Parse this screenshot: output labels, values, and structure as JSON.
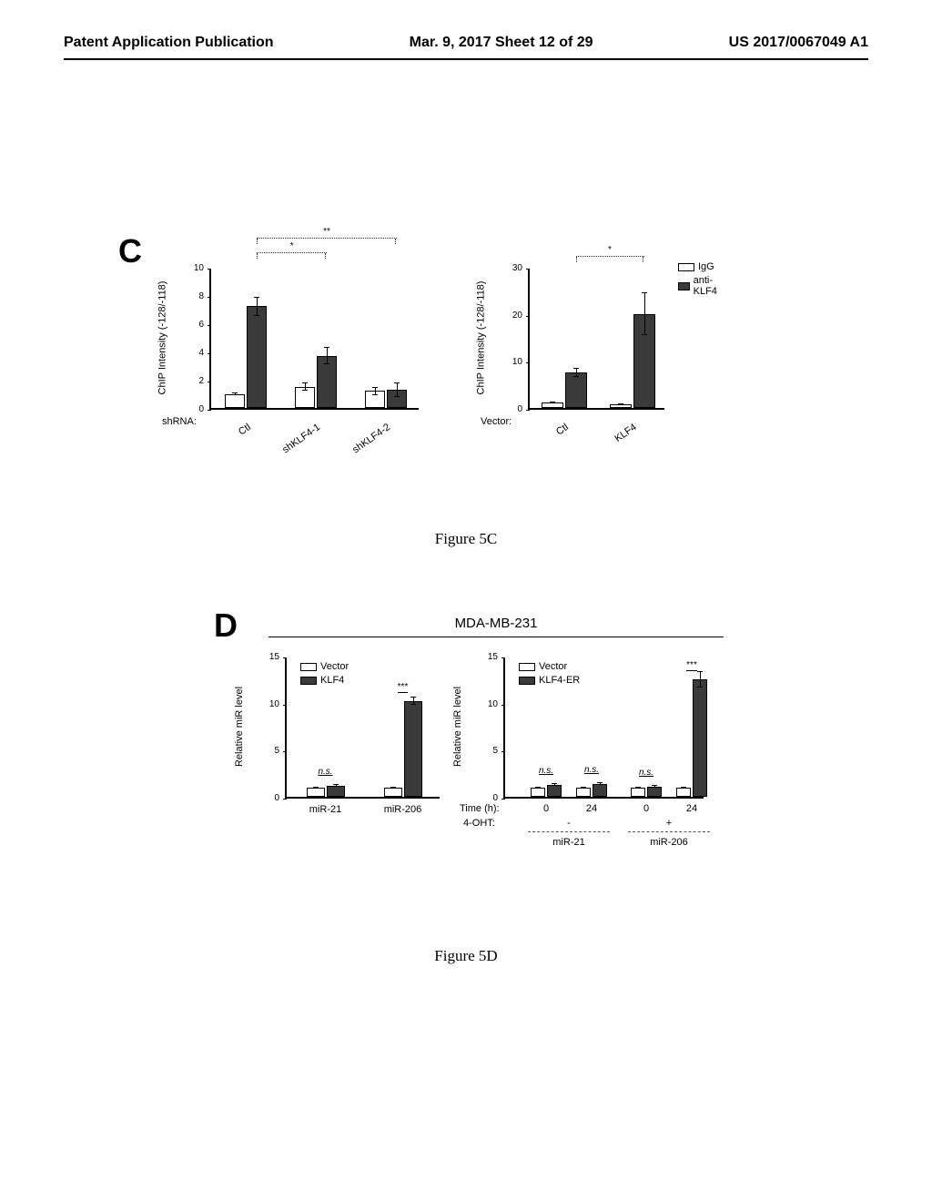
{
  "header": {
    "left": "Patent Application Publication",
    "center": "Mar. 9, 2017  Sheet 12 of 29",
    "right": "US 2017/0067049 A1"
  },
  "panelC": {
    "label": "C",
    "caption": "Figure 5C",
    "yaxis": "ChIP Intensity (-128/-118)",
    "left_chart": {
      "xaxis_label": "shRNA:",
      "categories": [
        "Ctl",
        "shKLF4-1",
        "shKLF4-2"
      ],
      "ylim": [
        0,
        10
      ],
      "ytick_step": 2,
      "series": [
        {
          "name": "IgG",
          "color": "#ffffff",
          "values": [
            1.0,
            1.5,
            1.2
          ],
          "errors": [
            0.1,
            0.3,
            0.3
          ]
        },
        {
          "name": "anti-KLF4",
          "color": "#3a3a3a",
          "values": [
            7.2,
            3.7,
            1.3
          ],
          "errors": [
            0.7,
            0.6,
            0.5
          ]
        }
      ],
      "significance": [
        {
          "label": "*",
          "from": 0,
          "to": 1
        },
        {
          "label": "**",
          "from": 0,
          "to": 2
        }
      ]
    },
    "right_chart": {
      "xaxis_label": "Vector:",
      "categories": [
        "Ctl",
        "KLF4"
      ],
      "ylim": [
        0,
        30
      ],
      "ytick_step": 10,
      "series": [
        {
          "name": "IgG",
          "color": "#ffffff",
          "values": [
            1.2,
            0.8
          ],
          "errors": [
            0.2,
            0.2
          ]
        },
        {
          "name": "anti-KLF4",
          "color": "#3a3a3a",
          "values": [
            7.5,
            20.0
          ],
          "errors": [
            1.0,
            4.5
          ]
        }
      ],
      "legend": [
        {
          "label": "IgG",
          "color": "#ffffff"
        },
        {
          "label": "anti-KLF4",
          "color": "#3a3a3a"
        }
      ],
      "significance": [
        {
          "label": "*",
          "from": 0,
          "to": 1
        }
      ]
    }
  },
  "panelD": {
    "label": "D",
    "caption": "Figure 5D",
    "cell_line": "MDA-MB-231",
    "yaxis": "Relative miR level",
    "left_chart": {
      "categories": [
        "miR-21",
        "miR-206"
      ],
      "ylim": [
        0,
        15
      ],
      "ytick_step": 5,
      "series": [
        {
          "name": "Vector",
          "color": "#ffffff",
          "values": [
            1.0,
            1.0
          ],
          "errors": [
            0.1,
            0.1
          ]
        },
        {
          "name": "KLF4",
          "color": "#3a3a3a",
          "values": [
            1.2,
            10.2
          ],
          "errors": [
            0.15,
            0.4
          ]
        }
      ],
      "legend": [
        {
          "label": "Vector",
          "color": "#ffffff"
        },
        {
          "label": "KLF4",
          "color": "#3a3a3a"
        }
      ],
      "significance": [
        {
          "label": "n.s.",
          "group": 0
        },
        {
          "label": "***",
          "group": 1
        }
      ]
    },
    "right_chart": {
      "time_label": "Time (h):",
      "oht_label": "4-OHT:",
      "groups": [
        "miR-21",
        "miR-206"
      ],
      "times": [
        "0",
        "24",
        "0",
        "24"
      ],
      "oht": [
        "-",
        "-",
        "+",
        "+"
      ],
      "ylim": [
        0,
        15
      ],
      "ytick_step": 5,
      "series": [
        {
          "name": "Vector",
          "color": "#ffffff",
          "values": [
            1.0,
            1.0,
            1.0,
            1.0
          ],
          "errors": [
            0.1,
            0.1,
            0.1,
            0.1
          ]
        },
        {
          "name": "KLF4-ER",
          "color": "#3a3a3a",
          "values": [
            1.3,
            1.4,
            1.1,
            12.5
          ],
          "errors": [
            0.15,
            0.15,
            0.15,
            0.9
          ]
        }
      ],
      "legend": [
        {
          "label": "Vector",
          "color": "#ffffff"
        },
        {
          "label": "KLF4-ER",
          "color": "#3a3a3a"
        }
      ],
      "significance": [
        {
          "label": "n.s.",
          "group": 0
        },
        {
          "label": "n.s.",
          "group": 1
        },
        {
          "label": "n.s.",
          "group": 2
        },
        {
          "label": "***",
          "group": 3
        }
      ]
    }
  }
}
